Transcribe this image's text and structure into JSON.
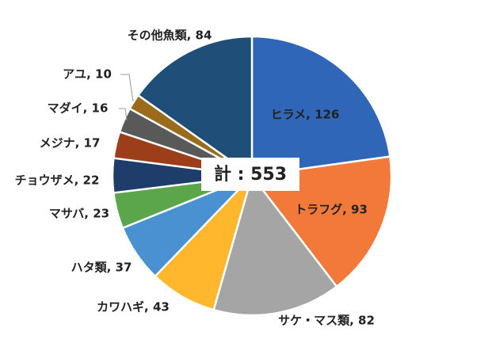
{
  "chart_data": {
    "type": "pie",
    "values": [
      126,
      93,
      82,
      43,
      37,
      23,
      22,
      17,
      16,
      10,
      84
    ],
    "value_labels": [
      "ヒラメ, 126",
      "トラフグ, 93",
      "サケ・マス類, 82",
      "カワハギ, 43",
      "ハタ類, 37",
      "マサバ, 23",
      "チョウザメ, 22",
      "メジナ, 17",
      "マダイ, 16",
      "アユ, 10",
      "その他魚類, 84"
    ],
    "colors": [
      "#2f66b8",
      "#f2793a",
      "#a5a5a5",
      "#ffb72d",
      "#4a91d1",
      "#5ba54b",
      "#1f3d6b",
      "#9d3e1b",
      "#595959",
      "#9b6b1c",
      "#1f4e79"
    ],
    "total_label": "計 : 553"
  }
}
